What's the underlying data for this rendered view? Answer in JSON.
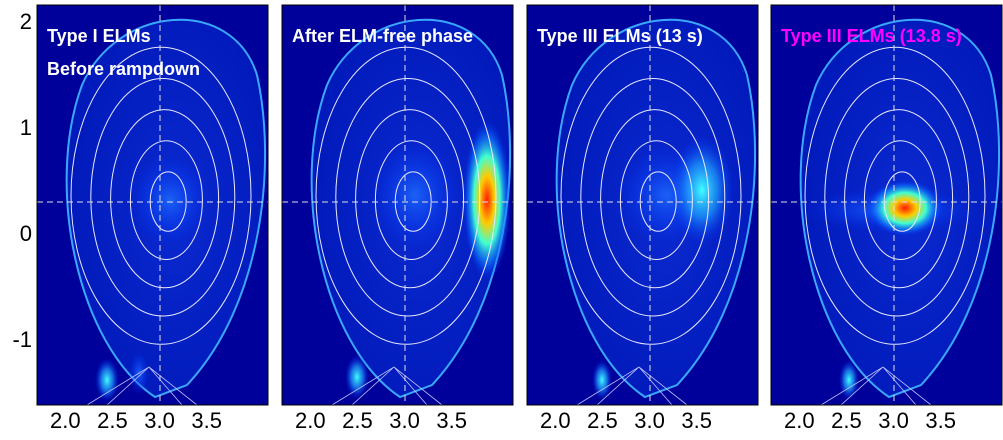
{
  "chart_data": [
    {
      "type": "emissivity-map",
      "title": [
        "Type I ELMs",
        "Before rampdown"
      ],
      "title_color": "#ffffff",
      "xlim": [
        1.7,
        4.15
      ],
      "ylim": [
        -1.6,
        2.17
      ],
      "xticks": [
        {
          "value": 2,
          "label": "2.0"
        },
        2.5,
        {
          "value": 3,
          "label": "3.0"
        },
        3.5
      ],
      "yticks": [
        2,
        1,
        0,
        -1
      ]
    },
    {
      "type": "emissivity-map",
      "title": [
        "After ELM-free phase"
      ],
      "title_color": "#ffffff",
      "xlim": [
        1.7,
        4.15
      ],
      "ylim": [
        -1.6,
        2.17
      ],
      "xticks": [
        {
          "value": 2,
          "label": "2.0"
        },
        2.5,
        {
          "value": 3,
          "label": "3.0"
        },
        3.5
      ]
    },
    {
      "type": "emissivity-map",
      "title": [
        "Type III ELMs (13 s)"
      ],
      "title_color": "#ffffff",
      "xlim": [
        1.7,
        4.15
      ],
      "ylim": [
        -1.6,
        2.17
      ],
      "xticks": [
        {
          "value": 2,
          "label": "2.0"
        },
        2.5,
        {
          "value": 3,
          "label": "3.0"
        },
        3.5
      ]
    },
    {
      "type": "emissivity-map",
      "title": [
        "Type III ELMs (13.8 s)"
      ],
      "title_color": "#ff00ff",
      "xlim": [
        1.7,
        4.15
      ],
      "ylim": [
        -1.6,
        2.17
      ],
      "xticks": [
        {
          "value": 2,
          "label": "2.0"
        },
        2.5,
        {
          "value": 3,
          "label": "3.0"
        },
        3.5
      ]
    }
  ]
}
